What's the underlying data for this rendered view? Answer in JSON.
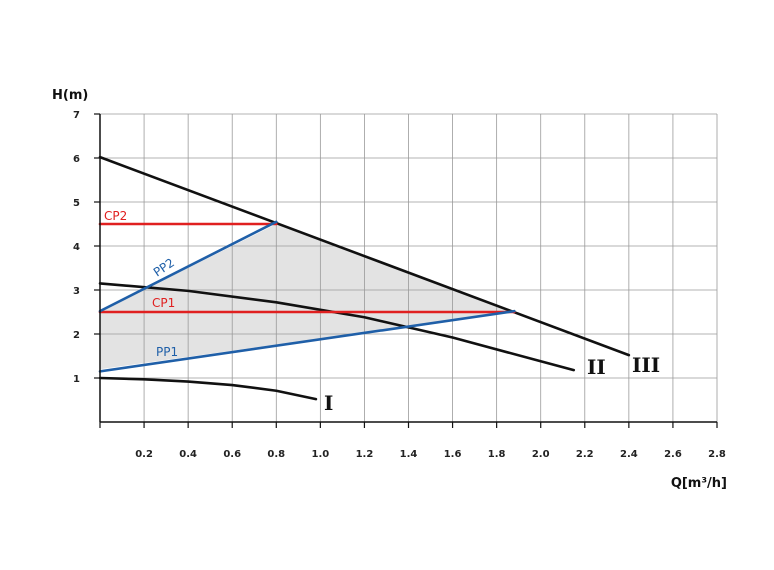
{
  "chart_data": {
    "type": "line",
    "title": "",
    "xlabel": "Q[m³/h]",
    "ylabel": "H(m)",
    "xlim": [
      0,
      2.8
    ],
    "ylim": [
      0,
      7
    ],
    "x_ticks": [
      0,
      0.2,
      0.4,
      0.6,
      0.8,
      1.0,
      1.2,
      1.4,
      1.6,
      1.8,
      2.0,
      2.2,
      2.4,
      2.6,
      2.8
    ],
    "x_tick_labels": [
      "",
      "0.2",
      "0.4",
      "0.6",
      "0.8",
      "1.0",
      "1.2",
      "1.4",
      "1.6",
      "1.8",
      "2.0",
      "2.2",
      "2.4",
      "2.6",
      "2.8"
    ],
    "y_ticks": [
      1,
      2,
      3,
      4,
      5,
      6,
      7
    ],
    "y_tick_labels": [
      "1",
      "2",
      "3",
      "4",
      "5",
      "6",
      "7"
    ],
    "grid": true,
    "colors": {
      "pump_curve": "#111111",
      "constant_pressure": "#e02020",
      "proportional_pressure": "#1f5fa8",
      "fill": "#e3e3e3"
    },
    "operating_area": [
      [
        0,
        1.2
      ],
      [
        0,
        2.5
      ],
      [
        0.8,
        4.5
      ],
      [
        1.88,
        2.52
      ]
    ],
    "series": [
      {
        "name": "I",
        "color": "#111111",
        "x": [
          0,
          0.2,
          0.4,
          0.6,
          0.8,
          0.98
        ],
        "y": [
          1.0,
          0.97,
          0.92,
          0.84,
          0.71,
          0.52
        ]
      },
      {
        "name": "II",
        "color": "#111111",
        "x": [
          0,
          0.4,
          0.8,
          1.2,
          1.6,
          2.0,
          2.15
        ],
        "y": [
          3.15,
          2.98,
          2.72,
          2.38,
          1.92,
          1.38,
          1.18
        ]
      },
      {
        "name": "III",
        "color": "#111111",
        "x": [
          0,
          2.4
        ],
        "y": [
          6.02,
          1.52
        ]
      },
      {
        "name": "CP2",
        "color": "#e02020",
        "x": [
          0,
          0.8
        ],
        "y": [
          4.5,
          4.5
        ]
      },
      {
        "name": "CP1",
        "color": "#e02020",
        "x": [
          0,
          1.88
        ],
        "y": [
          2.5,
          2.5
        ]
      },
      {
        "name": "PP2",
        "color": "#1f5fa8",
        "x": [
          0,
          0.8
        ],
        "y": [
          2.52,
          4.55
        ]
      },
      {
        "name": "PP1",
        "color": "#1f5fa8",
        "x": [
          0,
          1.88
        ],
        "y": [
          1.15,
          2.52
        ]
      }
    ]
  }
}
